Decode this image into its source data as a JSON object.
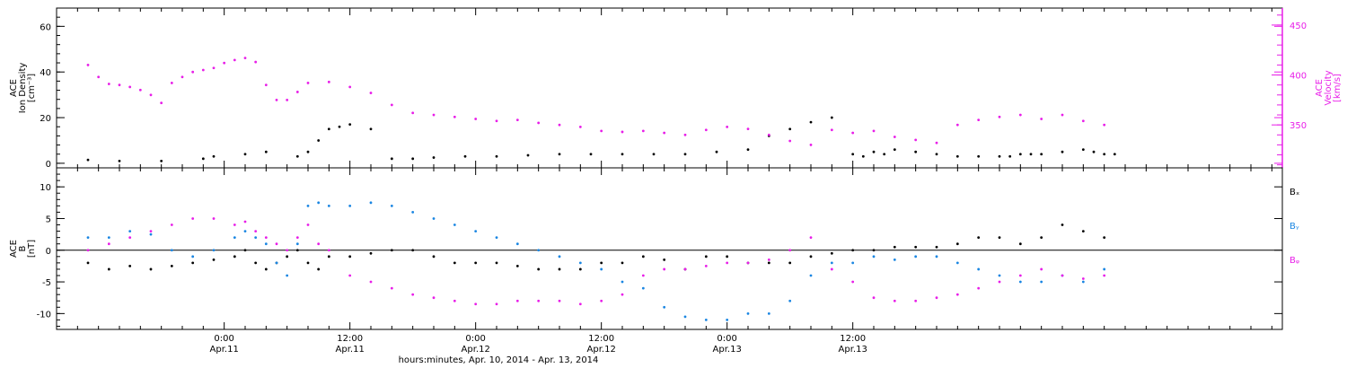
{
  "chart_data": [
    {
      "panel": "top",
      "type": "scatter",
      "left_ylabel": [
        "ACE",
        "Ion Density",
        "[cm⁻³]"
      ],
      "left_ylim": [
        -2,
        68
      ],
      "left_yticks": [
        "0",
        "20",
        "40",
        "60"
      ],
      "right_ylabel": [
        "ACE",
        "Velocity",
        "[km/s]"
      ],
      "right_ylim": [
        307,
        467
      ],
      "right_yticks": [
        "350",
        "400",
        "450"
      ],
      "right_axis_color": "#e81ee8",
      "series": [
        {
          "name": "",
          "color": "#000000",
          "axis": "left",
          "x": [
            -13,
            -10,
            -6,
            -2,
            -1,
            2,
            4,
            7,
            8,
            9,
            10,
            11,
            12,
            14,
            16,
            18,
            20,
            23,
            26,
            29,
            32,
            35,
            38,
            41,
            44,
            47,
            50,
            52,
            54,
            56,
            58,
            60,
            61,
            62,
            63,
            64,
            66,
            68,
            70,
            72,
            74,
            75,
            76,
            77,
            78,
            80,
            82,
            83,
            84,
            85
          ],
          "y": [
            1.5,
            1,
            1,
            2,
            3,
            4,
            5,
            3,
            5,
            10,
            15,
            16,
            17,
            15,
            2,
            2,
            2.5,
            3,
            3,
            3.5,
            4,
            4,
            4,
            4,
            4,
            5,
            6,
            12,
            15,
            18,
            20,
            4,
            3,
            5,
            4,
            6,
            5,
            4,
            3,
            3,
            3,
            3,
            4,
            4,
            4,
            5,
            6,
            5,
            4,
            4
          ]
        },
        {
          "name": "",
          "color": "#e81ee8",
          "axis": "right",
          "x": [
            -13,
            -12,
            -11,
            -10,
            -9,
            -8,
            -7,
            -6,
            -5,
            -4,
            -3,
            -2,
            -1,
            0,
            1,
            2,
            3,
            4,
            5,
            6,
            7,
            8,
            10,
            12,
            14,
            16,
            18,
            20,
            22,
            24,
            26,
            28,
            30,
            32,
            34,
            36,
            38,
            40,
            42,
            44,
            46,
            48,
            50,
            52,
            54,
            56,
            58,
            60,
            62,
            64,
            66,
            68,
            70,
            72,
            74,
            76,
            78,
            80,
            82,
            84
          ],
          "y": [
            410,
            398,
            391,
            390,
            388,
            385,
            380,
            372,
            392,
            398,
            403,
            405,
            407,
            412,
            415,
            417,
            413,
            390,
            375,
            375,
            383,
            392,
            393,
            388,
            382,
            370,
            362,
            360,
            358,
            356,
            354,
            355,
            352,
            350,
            348,
            344,
            343,
            344,
            342,
            340,
            345,
            348,
            346,
            340,
            334,
            330,
            345,
            342,
            344,
            338,
            335,
            332,
            350,
            355,
            358,
            360,
            356,
            360,
            354,
            350
          ]
        }
      ]
    },
    {
      "panel": "bottom",
      "type": "scatter",
      "left_ylabel": [
        "ACE",
        "B",
        "[nT]"
      ],
      "left_ylim": [
        -12.5,
        13
      ],
      "left_yticks": [
        "-10",
        "-5",
        "0",
        "5",
        "10"
      ],
      "series": [
        {
          "name": "Bₓ",
          "color": "#000000",
          "x": [
            -13,
            -11,
            -9,
            -7,
            -5,
            -3,
            -1,
            1,
            2,
            3,
            4,
            5,
            6,
            7,
            8,
            9,
            10,
            12,
            14,
            16,
            18,
            20,
            22,
            24,
            26,
            28,
            30,
            32,
            34,
            36,
            38,
            40,
            42,
            44,
            46,
            48,
            50,
            52,
            54,
            56,
            58,
            60,
            62,
            64,
            66,
            68,
            70,
            72,
            74,
            76,
            78,
            80,
            82,
            84
          ],
          "y": [
            -2,
            -3,
            -2.5,
            -3,
            -2.5,
            -2,
            -1.5,
            -1,
            0,
            -2,
            -3,
            -2,
            -1,
            0,
            -2,
            -3,
            -1,
            -1,
            -0.5,
            0,
            0,
            -1,
            -2,
            -2,
            -2,
            -2.5,
            -3,
            -3,
            -3,
            -2,
            -2,
            -1,
            -1.5,
            -3,
            -1,
            -1,
            -2,
            -2,
            -2,
            -1,
            -0.5,
            0,
            0,
            0.5,
            0.5,
            0.5,
            1,
            2,
            2,
            1,
            2,
            4,
            3,
            2
          ]
        },
        {
          "name": "Bᵧ",
          "color": "#1a86e2",
          "x": [
            -13,
            -11,
            -9,
            -7,
            -5,
            -3,
            -1,
            1,
            2,
            3,
            4,
            5,
            6,
            7,
            8,
            9,
            10,
            12,
            14,
            16,
            18,
            20,
            22,
            24,
            26,
            28,
            30,
            32,
            34,
            36,
            38,
            40,
            42,
            44,
            46,
            48,
            50,
            52,
            54,
            56,
            58,
            60,
            62,
            64,
            66,
            68,
            70,
            72,
            74,
            76,
            78,
            80,
            82,
            84
          ],
          "y": [
            2,
            2,
            3,
            2.5,
            0,
            -1,
            0,
            2,
            3,
            2,
            1,
            -2,
            -4,
            1,
            7,
            7.5,
            7,
            7,
            7.5,
            7,
            6,
            5,
            4,
            3,
            2,
            1,
            0,
            -1,
            -2,
            -3,
            -5,
            -6,
            -9,
            -10.5,
            -11,
            -11,
            -10,
            -10,
            -8,
            -4,
            -2,
            -2,
            -1,
            -1.5,
            -1,
            -1,
            -2,
            -3,
            -4,
            -5,
            -5,
            -4,
            -5,
            -3
          ]
        },
        {
          "name": "Bᵩ",
          "color": "#e81ee8",
          "x": [
            -13,
            -11,
            -9,
            -7,
            -5,
            -3,
            -1,
            1,
            2,
            3,
            4,
            5,
            6,
            7,
            8,
            9,
            10,
            12,
            14,
            16,
            18,
            20,
            22,
            24,
            26,
            28,
            30,
            32,
            34,
            36,
            38,
            40,
            42,
            44,
            46,
            48,
            50,
            52,
            54,
            56,
            58,
            60,
            62,
            64,
            66,
            68,
            70,
            72,
            74,
            76,
            78,
            80,
            82,
            84
          ],
          "y": [
            0,
            1,
            2,
            3,
            4,
            5,
            5,
            4,
            4.5,
            3,
            2,
            1,
            0,
            2,
            4,
            1,
            0,
            -4,
            -5,
            -6,
            -7,
            -7.5,
            -8,
            -8.5,
            -8.5,
            -8,
            -8,
            -8,
            -8.5,
            -8,
            -7,
            -4,
            -3,
            -3,
            -2.5,
            -2,
            -2,
            -1.5,
            0,
            2,
            -3,
            -5,
            -7.5,
            -8,
            -8,
            -7.5,
            -7,
            -6,
            -5,
            -4,
            -3,
            -4,
            -4.5,
            -4
          ]
        }
      ],
      "legend_placement": "right"
    }
  ],
  "x_axis": {
    "xlim": [
      -16,
      101
    ],
    "ticks": [
      {
        "x": 0,
        "time": "0:00",
        "date": "Apr.11"
      },
      {
        "x": 12,
        "time": "12:00",
        "date": "Apr.11"
      },
      {
        "x": 24,
        "time": "0:00",
        "date": "Apr.12"
      },
      {
        "x": 36,
        "time": "12:00",
        "date": "Apr.12"
      },
      {
        "x": 48,
        "time": "0:00",
        "date": "Apr.13"
      },
      {
        "x": 60,
        "time": "12:00",
        "date": "Apr.13"
      }
    ],
    "label": "hours:minutes, Apr. 10, 2014 - Apr. 13, 2014"
  }
}
